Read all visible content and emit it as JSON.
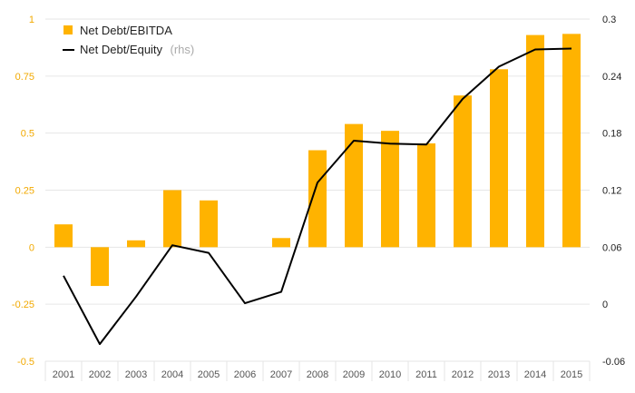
{
  "chart_data": {
    "type": "bar+line",
    "x": [
      "2001",
      "2002",
      "2003",
      "2004",
      "2005",
      "2006",
      "2007",
      "2008",
      "2009",
      "2010",
      "2011",
      "2012",
      "2013",
      "2014",
      "2015"
    ],
    "series": [
      {
        "name": "Net Debt/EBITDA",
        "type": "bar",
        "axis": "left",
        "color": "#ffb300",
        "values": [
          0.1,
          -0.17,
          0.03,
          0.25,
          0.205,
          0.0,
          0.04,
          0.425,
          0.54,
          0.51,
          0.455,
          0.665,
          0.78,
          0.93,
          0.935
        ]
      },
      {
        "name": "Net Debt/Equity",
        "name_note": "(rhs)",
        "type": "line",
        "axis": "right",
        "color": "#000000",
        "values": [
          0.03,
          -0.042,
          0.008,
          0.062,
          0.054,
          0.001,
          0.013,
          0.128,
          0.172,
          0.169,
          0.168,
          0.216,
          0.25,
          0.268,
          0.269
        ]
      }
    ],
    "y_left": {
      "ylim": [
        -0.5,
        1
      ],
      "ticks": [
        -0.5,
        -0.25,
        0,
        0.25,
        0.5,
        0.75,
        1
      ],
      "tick_labels": [
        "-0.5",
        "-0.25",
        "0",
        "0.25",
        "0.5",
        "0.75",
        "1"
      ],
      "color": "#f2a900"
    },
    "y_right": {
      "ylim": [
        -0.06,
        0.3
      ],
      "ticks": [
        -0.06,
        0,
        0.06,
        0.12,
        0.18,
        0.24,
        0.3
      ],
      "tick_labels": [
        "-0.06",
        "0",
        "0.06",
        "0.12",
        "0.18",
        "0.24",
        "0.3"
      ],
      "color": "#222222"
    },
    "grid": true,
    "legend": "top-left",
    "title": "",
    "xlabel": "",
    "ylabel": ""
  }
}
